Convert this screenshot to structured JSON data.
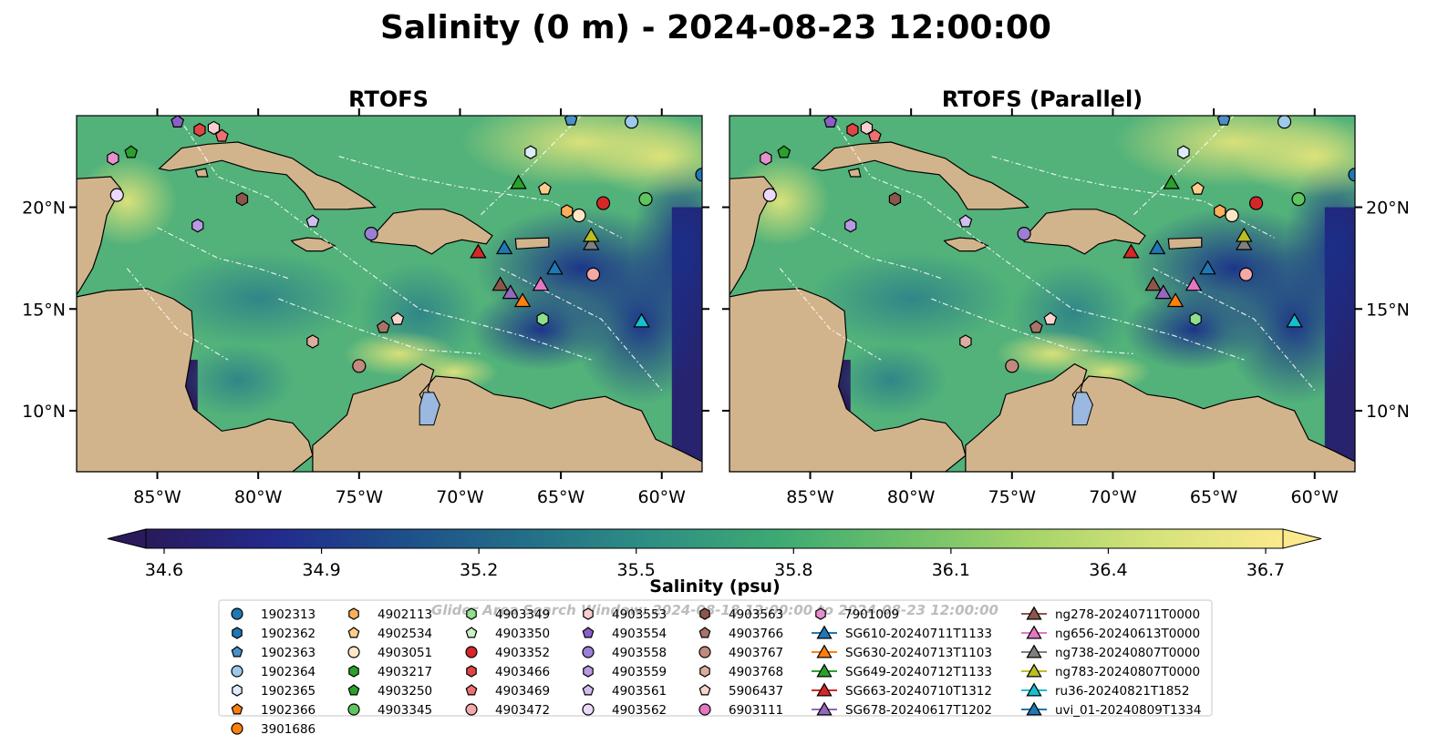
{
  "title": "Salinity (0 m) - 2024-08-23 12:00:00",
  "panels": [
    {
      "title": "RTOFS"
    },
    {
      "title": "RTOFS (Parallel)"
    }
  ],
  "watermark": "Glider Area Search Window: 2024-08-18 12:00:00 to 2024-08-23 12:00:00",
  "chart_data": {
    "type": "heatmap",
    "title": "Salinity (0 m) - 2024-08-23 12:00:00",
    "panels": [
      "RTOFS",
      "RTOFS (Parallel)"
    ],
    "xlim": [
      -89,
      -58
    ],
    "ylim": [
      7,
      24.5
    ],
    "x_ticks": [
      {
        "v": -85,
        "label": "85°W"
      },
      {
        "v": -80,
        "label": "80°W"
      },
      {
        "v": -75,
        "label": "75°W"
      },
      {
        "v": -70,
        "label": "70°W"
      },
      {
        "v": -65,
        "label": "65°W"
      },
      {
        "v": -60,
        "label": "60°W"
      }
    ],
    "y_ticks": [
      {
        "v": 20,
        "label": "20°N"
      },
      {
        "v": 15,
        "label": "15°N"
      },
      {
        "v": 10,
        "label": "10°N"
      }
    ],
    "colorbar": {
      "label": "Salinity (psu)",
      "vmin": 34.6,
      "vmax": 36.7,
      "ticks": [
        "34.6",
        "34.9",
        "35.2",
        "35.5",
        "35.8",
        "36.1",
        "36.4",
        "36.7"
      ],
      "extend": "both",
      "colormap": [
        "#2a1a5c",
        "#232a8c",
        "#1d4e8a",
        "#236e88",
        "#2e8f83",
        "#3daa72",
        "#6cc06a",
        "#a6d46a",
        "#d6e37a",
        "#fbe98c"
      ]
    },
    "land_color": "#d2b48c",
    "markers": [
      {
        "id": "1902313",
        "shape": "circle",
        "color": "#1f77b4",
        "lon": -58,
        "lat": 21.6
      },
      {
        "id": "1902362",
        "shape": "hexagon",
        "color": "#1f77b4",
        "lon": null,
        "lat": null
      },
      {
        "id": "1902363",
        "shape": "pentagon",
        "color": "#4a90c8",
        "lon": -64.5,
        "lat": 24.3
      },
      {
        "id": "1902364",
        "shape": "circle",
        "color": "#9ec9e8",
        "lon": -61.5,
        "lat": 24.2
      },
      {
        "id": "1902365",
        "shape": "hexagon",
        "color": "#dcecfb",
        "lon": -66.5,
        "lat": 22.7
      },
      {
        "id": "1902366",
        "shape": "pentagon",
        "color": "#ff7f0e",
        "lon": null,
        "lat": null
      },
      {
        "id": "3901686",
        "shape": "circle",
        "color": "#ff7f0e",
        "lon": null,
        "lat": null
      },
      {
        "id": "4902113",
        "shape": "hexagon",
        "color": "#ffae5c",
        "lon": -64.7,
        "lat": 19.8
      },
      {
        "id": "4902534",
        "shape": "pentagon",
        "color": "#ffcc8a",
        "lon": -65.8,
        "lat": 20.9
      },
      {
        "id": "4903051",
        "shape": "circle",
        "color": "#ffe6c4",
        "lon": -64.1,
        "lat": 19.6
      },
      {
        "id": "4903217",
        "shape": "hexagon",
        "color": "#2ca02c",
        "lon": null,
        "lat": null
      },
      {
        "id": "4903250",
        "shape": "pentagon",
        "color": "#2ca02c",
        "lon": -86.3,
        "lat": 22.7
      },
      {
        "id": "4903345",
        "shape": "circle",
        "color": "#5fc65f",
        "lon": -60.8,
        "lat": 20.4
      },
      {
        "id": "4903349",
        "shape": "hexagon",
        "color": "#8ee08e",
        "lon": -65.9,
        "lat": 14.5
      },
      {
        "id": "4903350",
        "shape": "pentagon",
        "color": "#c8f2c8",
        "lon": null,
        "lat": null
      },
      {
        "id": "4903352",
        "shape": "circle",
        "color": "#d62728",
        "lon": -62.9,
        "lat": 20.2
      },
      {
        "id": "4903466",
        "shape": "hexagon",
        "color": "#e04545",
        "lon": -82.9,
        "lat": 23.8
      },
      {
        "id": "4903469",
        "shape": "pentagon",
        "color": "#ef7070",
        "lon": -81.8,
        "lat": 23.5
      },
      {
        "id": "4903472",
        "shape": "circle",
        "color": "#f4a8a8",
        "lon": -63.4,
        "lat": 16.7
      },
      {
        "id": "4903553",
        "shape": "hexagon",
        "color": "#f7cfd0",
        "lon": -82.2,
        "lat": 23.9
      },
      {
        "id": "4903554",
        "shape": "pentagon",
        "color": "#8c5fc8",
        "lon": -84.0,
        "lat": 24.2
      },
      {
        "id": "4903558",
        "shape": "circle",
        "color": "#9b7fd4",
        "lon": -74.4,
        "lat": 18.7
      },
      {
        "id": "4903559",
        "shape": "hexagon",
        "color": "#b89ae3",
        "lon": -83.0,
        "lat": 19.1
      },
      {
        "id": "4903561",
        "shape": "pentagon",
        "color": "#d2bdf0",
        "lon": -77.3,
        "lat": 19.3
      },
      {
        "id": "4903562",
        "shape": "circle",
        "color": "#ead9fb",
        "lon": -87.0,
        "lat": 20.6
      },
      {
        "id": "4903563",
        "shape": "hexagon",
        "color": "#8c564b",
        "lon": -80.8,
        "lat": 20.4
      },
      {
        "id": "4903766",
        "shape": "pentagon",
        "color": "#a87466",
        "lon": -73.8,
        "lat": 14.1
      },
      {
        "id": "4903767",
        "shape": "circle",
        "color": "#c08a7d",
        "lon": -75.0,
        "lat": 12.2
      },
      {
        "id": "4903768",
        "shape": "hexagon",
        "color": "#dcad9f",
        "lon": -77.3,
        "lat": 13.4
      },
      {
        "id": "5906437",
        "shape": "pentagon",
        "color": "#f6d5cd",
        "lon": -73.1,
        "lat": 14.5
      },
      {
        "id": "6903111",
        "shape": "circle",
        "color": "#e377c2",
        "lon": null,
        "lat": null
      },
      {
        "id": "7901009",
        "shape": "hexagon",
        "color": "#e690cc",
        "lon": -87.2,
        "lat": 22.4
      },
      {
        "id": "SG610-20240711T1133",
        "shape": "triangle",
        "color": "#1f77b4",
        "lon": -67.8,
        "lat": 18.0
      },
      {
        "id": "SG630-20240713T1103",
        "shape": "triangle",
        "color": "#ff7f0e",
        "lon": -66.9,
        "lat": 15.4
      },
      {
        "id": "SG649-20240712T1133",
        "shape": "triangle",
        "color": "#2ca02c",
        "lon": -67.1,
        "lat": 21.2
      },
      {
        "id": "SG663-20240710T1312",
        "shape": "triangle",
        "color": "#d62728",
        "lon": -69.1,
        "lat": 17.8
      },
      {
        "id": "SG678-20240617T1202",
        "shape": "triangle",
        "color": "#9467bd",
        "lon": -67.5,
        "lat": 15.8
      },
      {
        "id": "ng278-20240711T0000",
        "shape": "triangle",
        "color": "#8c564b",
        "lon": -68.0,
        "lat": 16.2
      },
      {
        "id": "ng656-20240613T0000",
        "shape": "triangle",
        "color": "#e377c2",
        "lon": -66.0,
        "lat": 16.2
      },
      {
        "id": "ng738-20240807T0000",
        "shape": "triangle",
        "color": "#7f7f7f",
        "lon": -63.5,
        "lat": 18.2
      },
      {
        "id": "ng783-20240807T0000",
        "shape": "triangle",
        "color": "#bcbd22",
        "lon": -63.5,
        "lat": 18.6
      },
      {
        "id": "ru36-20240821T1852",
        "shape": "triangle",
        "color": "#17becf",
        "lon": -61.0,
        "lat": 14.4
      },
      {
        "id": "uvi_01-20240809T1334",
        "shape": "triangle",
        "color": "#1f77b4",
        "lon": -65.3,
        "lat": 17.0
      }
    ]
  }
}
